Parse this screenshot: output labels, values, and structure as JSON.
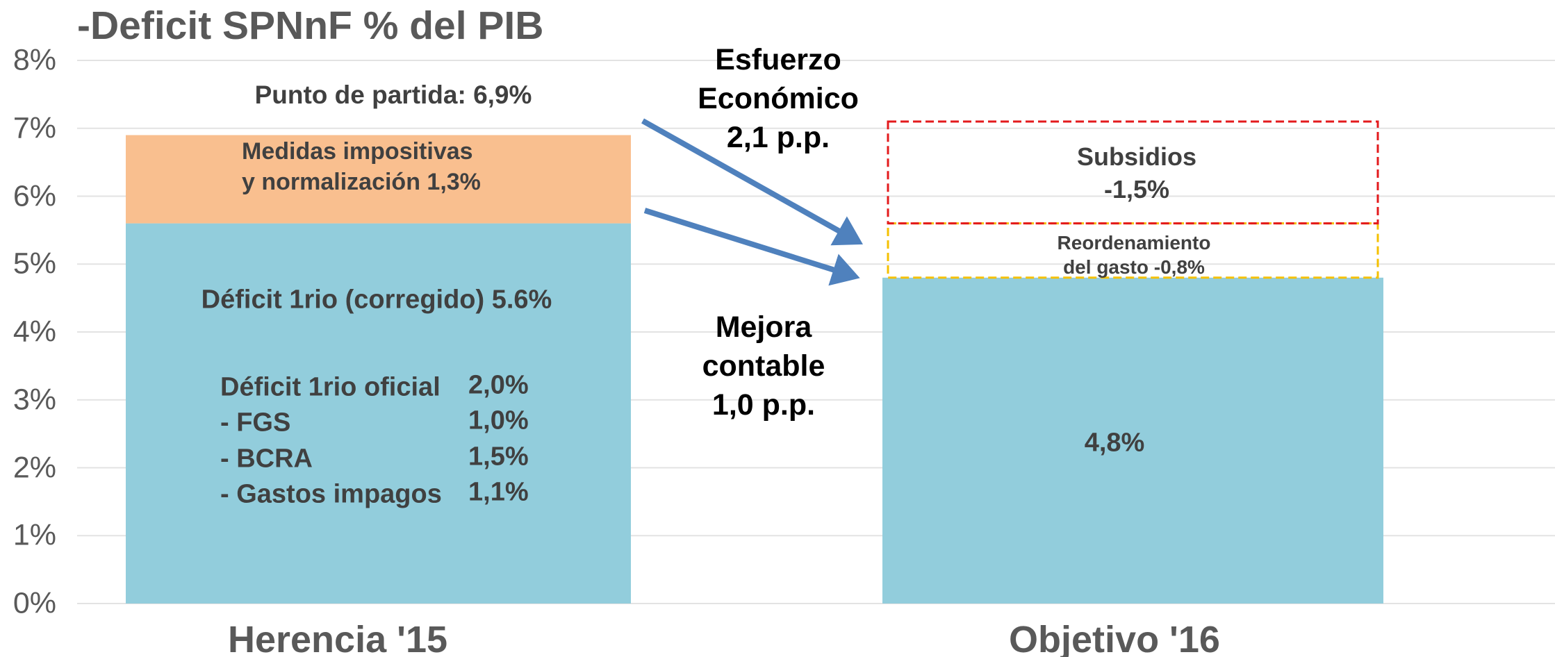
{
  "chart_data": {
    "type": "stacked_bar",
    "title": "-Deficit SPNnF % del PIB",
    "categories": [
      "Herencia '15",
      "Objetivo '16"
    ],
    "series": [
      {
        "color": "#92cddc",
        "style": "solid",
        "values": [
          5.6,
          4.8
        ],
        "value_labels": [
          "Déficit 1rio (corregido) 5.6%",
          "4,8%"
        ]
      },
      {
        "color": "#f9bf8f",
        "style": "solid",
        "values": [
          1.3,
          null
        ],
        "value_labels": [
          "Medidas impositivas\ny normalización 1,3%",
          null
        ]
      },
      {
        "color": "#f5c000",
        "style": "dashed",
        "values": [
          null,
          0.8
        ],
        "value_labels": [
          null,
          "Reordenamiento\ndel gasto -0,8%"
        ]
      },
      {
        "color": "#e31a1c",
        "style": "dashed",
        "values": [
          null,
          1.5
        ],
        "value_labels": [
          null,
          "Subsidios\n-1,5%"
        ]
      }
    ],
    "ylim": [
      0,
      8
    ],
    "yticks": [
      {
        "value": 0,
        "label": "0%"
      },
      {
        "value": 1,
        "label": "1%"
      },
      {
        "value": 2,
        "label": "2%"
      },
      {
        "value": 3,
        "label": "3%"
      },
      {
        "value": 4,
        "label": "4%"
      },
      {
        "value": 5,
        "label": "5%"
      },
      {
        "value": 6,
        "label": "6%"
      },
      {
        "value": 7,
        "label": "7%"
      },
      {
        "value": 8,
        "label": "8%"
      }
    ],
    "grid": true,
    "annotations": [
      "Punto de partida: 6,9%",
      "Esfuerzo\nEconómico\n2,1 p.p.",
      "Mejora\ncontable\n1,0 p.p."
    ],
    "breakdown": [
      [
        "Déficit 1rio oficial",
        "2,0%"
      ],
      [
        "- FGS",
        "1,0%"
      ],
      [
        "- BCRA",
        "1,5%"
      ],
      [
        "- Gastos impagos",
        "1,1%"
      ]
    ]
  }
}
